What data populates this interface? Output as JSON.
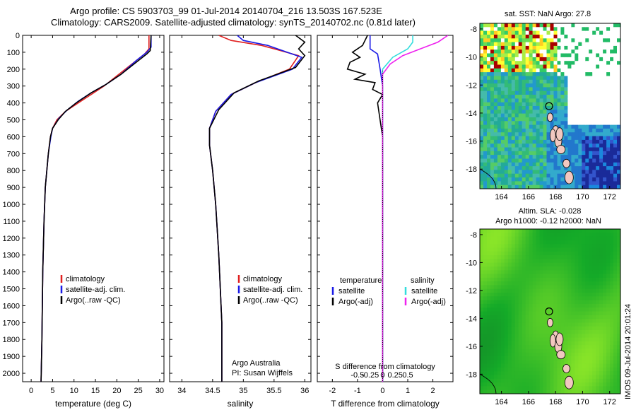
{
  "header": {
    "line1": "Argo profile: CS 5903703_99 01-Jul-2014 20140704_216 13.503S 167.523E",
    "line2": "Climatology: CARS2009. Satellite-adjusted climatology: synTS_20140702.nc (0.81d later)"
  },
  "depth_axis": {
    "ticks": [
      0,
      100,
      200,
      300,
      400,
      500,
      600,
      700,
      800,
      900,
      1000,
      1100,
      1200,
      1300,
      1400,
      1500,
      1600,
      1700,
      1800,
      1900,
      2000
    ],
    "range": [
      0,
      2050
    ]
  },
  "colors": {
    "climatology": "#e02020",
    "satellite": "#1a1ae6",
    "argo": "#000000",
    "sal_satellite": "#33dddd",
    "sal_argo": "#ee22ee"
  },
  "chart_data": [
    {
      "type": "line",
      "id": "temperature",
      "xlabel": "temperature (deg C)",
      "xlim": [
        -2,
        31
      ],
      "xticks": [
        0,
        5,
        10,
        15,
        20,
        25,
        30
      ],
      "legend": [
        "climatology",
        "satellite-adj. clim.",
        "Argo(..raw -QC)"
      ],
      "series": [
        {
          "name": "climatology",
          "color": "#e02020",
          "x": [
            27.5,
            27.5,
            26.5,
            24,
            20,
            17,
            14,
            11,
            8,
            6,
            5,
            4.5,
            4,
            3.3,
            3,
            2.7,
            2.5,
            2.3
          ],
          "y": [
            0,
            80,
            110,
            160,
            240,
            300,
            350,
            400,
            450,
            500,
            550,
            600,
            700,
            900,
            1100,
            1400,
            1800,
            2050
          ]
        },
        {
          "name": "satellite-adj. clim.",
          "color": "#1a1ae6",
          "x": [
            28,
            28,
            27,
            24.5,
            21,
            17.5,
            14,
            11,
            8.5,
            6.5,
            5,
            4.6,
            4,
            3.3,
            3,
            2.7,
            2.5,
            2.3
          ],
          "y": [
            0,
            70,
            100,
            150,
            230,
            290,
            340,
            390,
            440,
            490,
            550,
            600,
            700,
            900,
            1100,
            1400,
            1800,
            2050
          ]
        },
        {
          "name": "Argo(..raw -QC)",
          "color": "#000000",
          "x": [
            28,
            27.8,
            27,
            25,
            21,
            17.5,
            14,
            10.5,
            8,
            6.3,
            5,
            4.5,
            4,
            3.3,
            3,
            2.7,
            2.5,
            2.3
          ],
          "y": [
            0,
            90,
            110,
            150,
            230,
            290,
            340,
            400,
            450,
            500,
            550,
            600,
            700,
            900,
            1100,
            1400,
            1800,
            2050
          ]
        }
      ]
    },
    {
      "type": "line",
      "id": "salinity",
      "xlabel": "salinity",
      "xlim": [
        33.8,
        36.1
      ],
      "xticks": [
        34,
        34.5,
        35,
        35.5,
        36
      ],
      "legend": [
        "climatology",
        "satellite-adj. clim.",
        "Argo(..raw -QC)"
      ],
      "annotations": [
        "Argo Australia",
        "PI: Susan Wijffels"
      ],
      "series": [
        {
          "name": "climatology",
          "color": "#e02020",
          "x": [
            34.6,
            34.8,
            35.3,
            35.9,
            35.75,
            35.2,
            34.8,
            34.55,
            34.45,
            34.45,
            34.5,
            34.55,
            34.6,
            34.65,
            34.65
          ],
          "y": [
            0,
            30,
            60,
            120,
            200,
            280,
            350,
            450,
            550,
            650,
            800,
            1000,
            1300,
            1700,
            2050
          ]
        },
        {
          "name": "satellite-adj. clim.",
          "color": "#1a1ae6",
          "x": [
            34.9,
            35,
            35.4,
            35.95,
            35.8,
            35.2,
            34.8,
            34.55,
            34.45,
            34.45,
            34.5,
            34.55,
            34.6,
            34.65,
            34.65
          ],
          "y": [
            0,
            30,
            60,
            130,
            200,
            280,
            350,
            450,
            550,
            650,
            800,
            1000,
            1300,
            1700,
            2050
          ]
        },
        {
          "name": "Argo(..raw -QC)",
          "color": "#000000",
          "x": [
            35.85,
            36,
            35.9,
            36,
            35.85,
            35.25,
            34.85,
            34.6,
            34.45,
            34.45,
            34.5,
            34.55,
            34.6,
            34.65,
            34.65
          ],
          "y": [
            0,
            40,
            80,
            120,
            190,
            270,
            340,
            440,
            550,
            650,
            800,
            1000,
            1300,
            1700,
            2050
          ]
        }
      ]
    },
    {
      "type": "line",
      "id": "difference",
      "xlabel": "T difference from climatology",
      "x2label": "S difference from climatology",
      "xlim": [
        -2.6,
        2.8
      ],
      "xticks": [
        -2,
        -1,
        0,
        1,
        2
      ],
      "x2ticks": [
        {
          "v": -0.5,
          "t": "-0.5"
        },
        {
          "v": -0.25,
          "t": "-0.25"
        },
        {
          "v": 0,
          "t": "0"
        },
        {
          "v": 0.25,
          "t": "0.25"
        },
        {
          "v": 0.5,
          "t": "0.5"
        }
      ],
      "legend_left_title": "temperature",
      "legend_right_title": "salinity",
      "legend": [
        "satellite",
        "Argo(-adj)",
        "satellite",
        "Argo(-adj)"
      ],
      "series": [
        {
          "name": "T satellite",
          "color": "#1a1ae6",
          "x": [
            -0.5,
            -0.5,
            -0.2,
            -0.1,
            0,
            0,
            0,
            0
          ],
          "y": [
            0,
            80,
            110,
            200,
            300,
            500,
            1000,
            2050
          ]
        },
        {
          "name": "T Argo(-adj)",
          "color": "#000000",
          "x": [
            -0.6,
            -0.8,
            -1.2,
            -0.9,
            -1.3,
            -1.4,
            -0.7,
            -1.1,
            -0.3,
            -0.4,
            0,
            -0.2,
            0,
            0,
            0,
            0
          ],
          "y": [
            0,
            60,
            100,
            130,
            160,
            200,
            230,
            260,
            280,
            320,
            350,
            400,
            600,
            1000,
            1500,
            2050
          ]
        },
        {
          "name": "S satellite",
          "color": "#33dddd",
          "x": [
            1.2,
            1.2,
            1,
            0.4,
            0,
            0,
            0,
            0
          ],
          "y": [
            0,
            40,
            80,
            130,
            200,
            400,
            1000,
            2050
          ]
        },
        {
          "name": "S Argo(-adj)",
          "color": "#ee22ee",
          "x": [
            2.6,
            2.2,
            1.5,
            0.8,
            0.3,
            0,
            0,
            0
          ],
          "y": [
            0,
            40,
            80,
            120,
            170,
            230,
            500,
            2050
          ]
        }
      ]
    },
    {
      "type": "heatmap",
      "id": "sst_map",
      "title": "sat. SST: NaN Argo: 27.8",
      "xticks": [
        164,
        166,
        168,
        170,
        172
      ],
      "yticks": [
        -8,
        -10,
        -12,
        -14,
        -16,
        -18
      ],
      "marker": {
        "lon": 167.523,
        "lat": -13.503
      }
    },
    {
      "type": "heatmap",
      "id": "sla_map",
      "title1": "Altim. SLA: -0.028",
      "title2": "Argo h1000: -0.12 h2000: NaN",
      "xticks": [
        164,
        166,
        168,
        170,
        172
      ],
      "yticks": [
        -8,
        -10,
        -12,
        -14,
        -16,
        -18
      ],
      "marker": {
        "lon": 167.523,
        "lat": -13.503
      }
    }
  ],
  "stamp": "IMOS 09-Jul-2014 20:01:24"
}
